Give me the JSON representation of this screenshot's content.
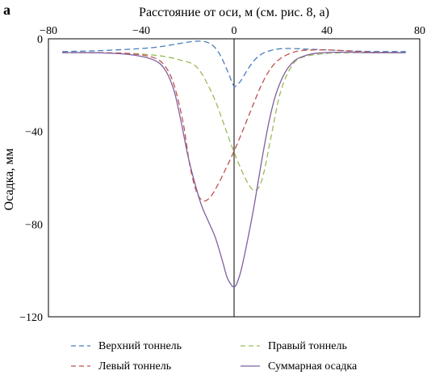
{
  "chart_data": {
    "type": "line",
    "panel_label": "а",
    "title": "Расстояние от оси, м (см. рис. 8, а)",
    "xlabel": "",
    "ylabel": "Осадка, мм",
    "x_axis_position": "top",
    "xlim": [
      -80,
      80
    ],
    "ylim": [
      -120,
      0
    ],
    "xticks": [
      -80,
      -40,
      0,
      40,
      80
    ],
    "yticks": [
      0,
      -40,
      -80,
      -120
    ],
    "xtick_labels": [
      "−80",
      "−40",
      "0",
      "40",
      "80"
    ],
    "ytick_labels": [
      "0",
      "−40",
      "−80",
      "−120"
    ],
    "grid": false,
    "legend_position": "bottom",
    "series": [
      {
        "name": "Верхний тоннель",
        "color": "#4a7ebb",
        "dash": "dashed",
        "x": [
          -74,
          -60,
          -45,
          -35,
          -28,
          -22,
          -18,
          -15,
          -12,
          -9,
          -6,
          -3,
          -1,
          0,
          1,
          3,
          6,
          9,
          12,
          16,
          20,
          25,
          30,
          40,
          50,
          60,
          74
        ],
        "y": [
          -5.5,
          -5.2,
          -4.5,
          -3.8,
          -2.8,
          -1.8,
          -1.2,
          -1.0,
          -1.4,
          -3.0,
          -7.0,
          -13.5,
          -18.5,
          -20.5,
          -20.2,
          -18.0,
          -13.0,
          -9.0,
          -6.5,
          -5.0,
          -4.3,
          -4.2,
          -4.4,
          -4.8,
          -5.2,
          -5.5,
          -5.5
        ]
      },
      {
        "name": "Правый тоннель",
        "color": "#9bbb59",
        "dash": "dashed",
        "x": [
          -74,
          -60,
          -45,
          -35,
          -28,
          -22,
          -18,
          -15,
          -12,
          -8,
          -4,
          0,
          4,
          7,
          9,
          11,
          13,
          16,
          20,
          25,
          30,
          40,
          50,
          60,
          74
        ],
        "y": [
          -6.0,
          -6.0,
          -6.3,
          -7.0,
          -8.0,
          -9.5,
          -10.8,
          -13.5,
          -18.5,
          -27.0,
          -38.0,
          -49.0,
          -58.5,
          -64.0,
          -65.5,
          -63.5,
          -57.0,
          -42.0,
          -23.0,
          -11.5,
          -7.8,
          -6.3,
          -6.0,
          -6.0,
          -6.0
        ]
      },
      {
        "name": "Левый тоннель",
        "color": "#c0504d",
        "dash": "dashed",
        "x": [
          -74,
          -60,
          -45,
          -35,
          -30,
          -26,
          -22,
          -19,
          -16,
          -13,
          -10,
          -7,
          -4,
          0,
          4,
          8,
          12,
          16,
          20,
          25,
          30,
          40,
          50,
          60,
          74
        ],
        "y": [
          -6.0,
          -6.0,
          -6.4,
          -8.0,
          -11.5,
          -19.5,
          -36.0,
          -55.0,
          -66.5,
          -70.0,
          -68.0,
          -63.0,
          -57.0,
          -48.5,
          -39.0,
          -29.0,
          -19.5,
          -12.5,
          -8.5,
          -6.0,
          -5.0,
          -4.8,
          -5.3,
          -5.8,
          -6.0
        ]
      },
      {
        "name": "Суммарная осадка",
        "color": "#7f5f9f",
        "dash": "solid",
        "x": [
          -74,
          -60,
          -45,
          -35,
          -30,
          -26,
          -23,
          -20,
          -17,
          -14,
          -11,
          -8,
          -5,
          -3,
          -1,
          0,
          1,
          3,
          6,
          9,
          12,
          15,
          18,
          22,
          26,
          30,
          35,
          45,
          60,
          74
        ],
        "y": [
          -6.0,
          -6.0,
          -6.8,
          -9.0,
          -13.0,
          -22.0,
          -35.0,
          -50.0,
          -62.0,
          -72.0,
          -79.0,
          -86.0,
          -96.0,
          -103.0,
          -106.5,
          -107.0,
          -106.0,
          -100.0,
          -86.0,
          -70.0,
          -52.0,
          -36.0,
          -24.0,
          -14.5,
          -9.5,
          -7.5,
          -6.3,
          -5.8,
          -6.0,
          -6.0
        ]
      }
    ]
  }
}
